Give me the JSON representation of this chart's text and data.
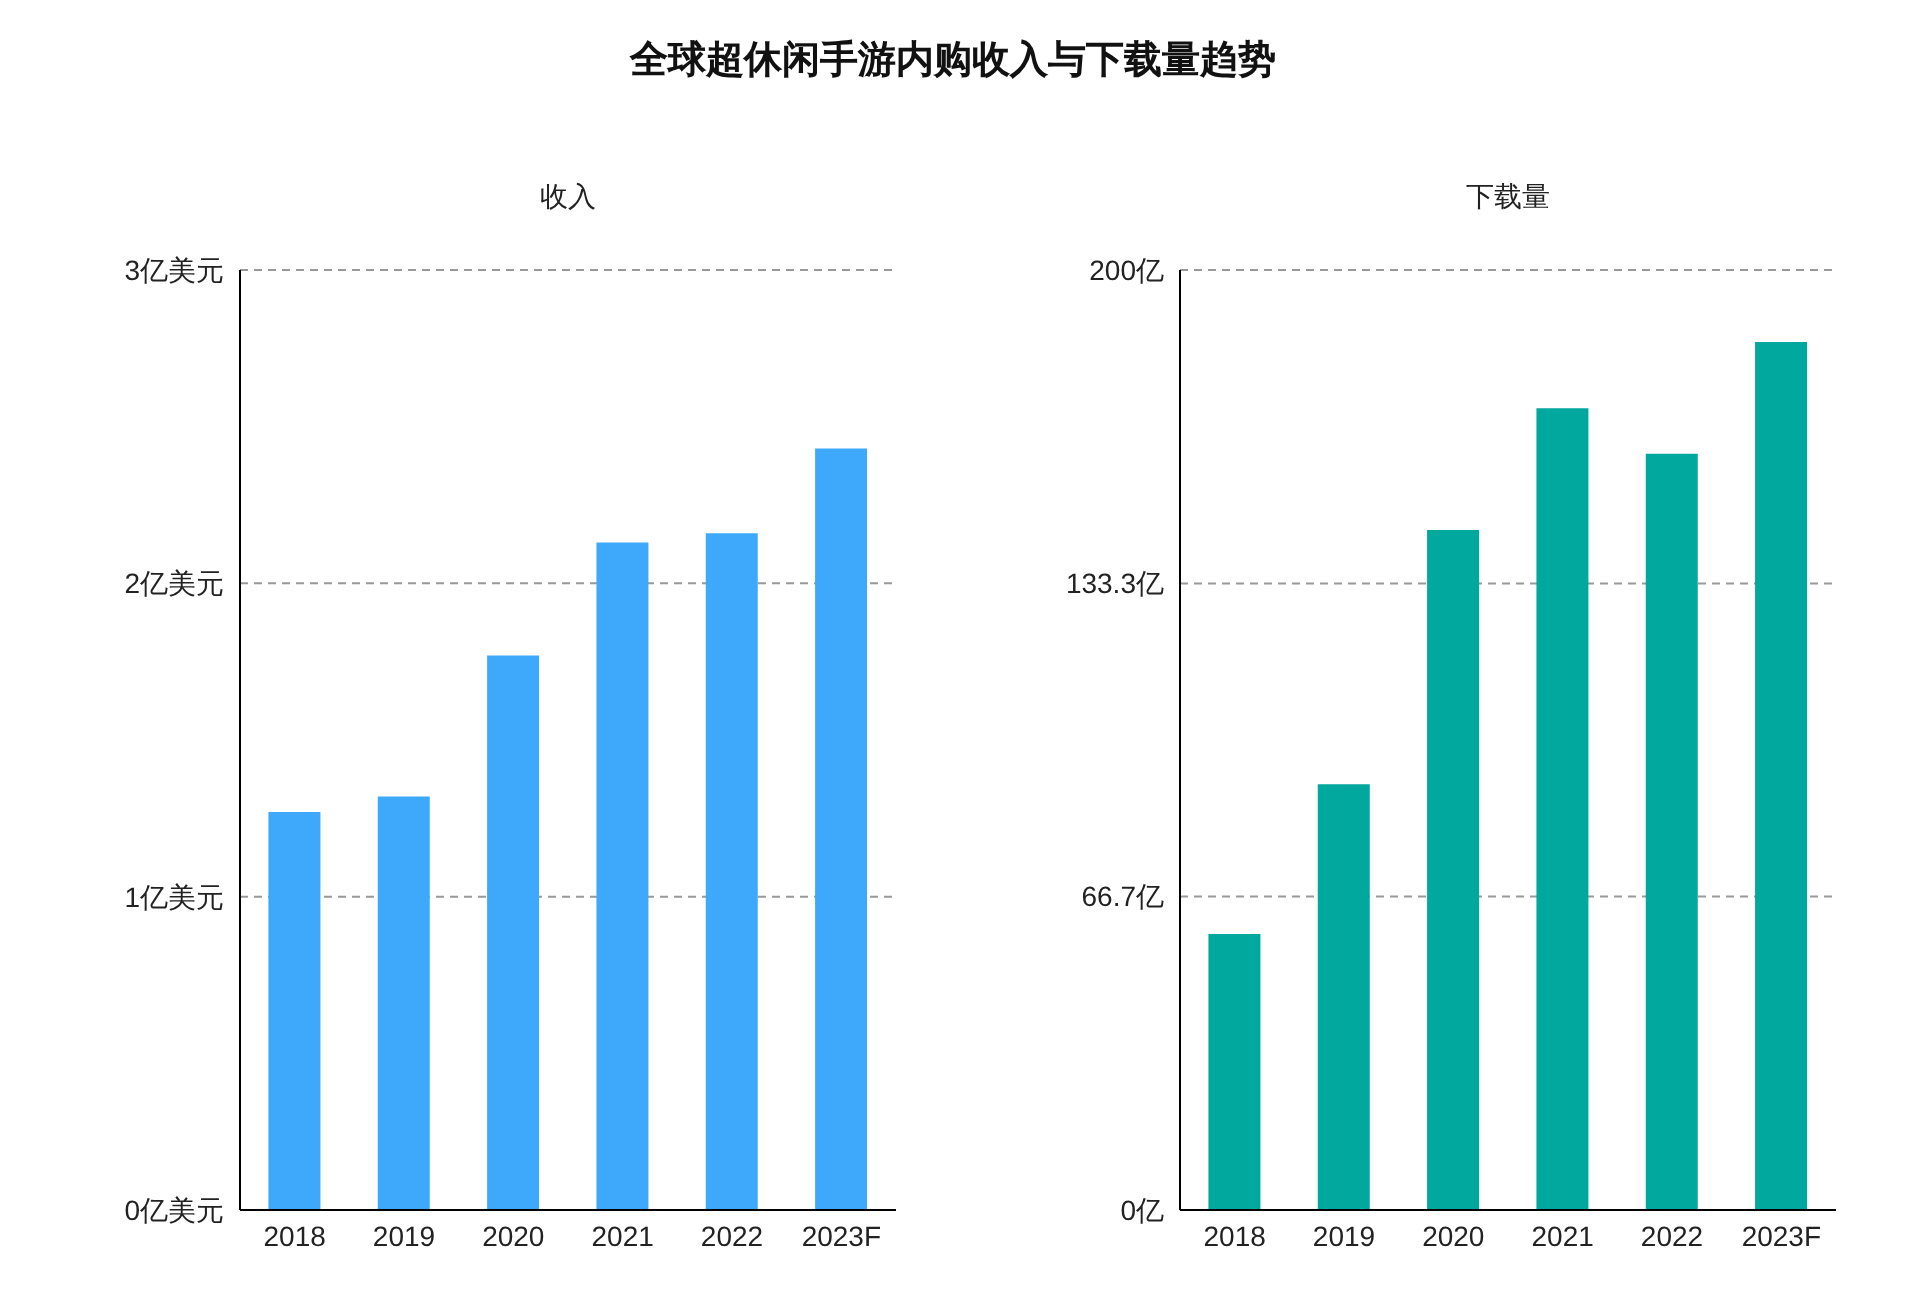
{
  "chart_data": [
    {
      "type": "bar",
      "title": "全球超休闲手游内购收入与下载量趋势",
      "subtitle": "收入",
      "categories": [
        "2018",
        "2019",
        "2020",
        "2021",
        "2022",
        "2023F"
      ],
      "values": [
        1.27,
        1.32,
        1.77,
        2.13,
        2.16,
        2.43
      ],
      "color": "#3ea9fb",
      "ylim": [
        0,
        3
      ],
      "yticks": [
        {
          "value": 0,
          "label": "0亿美元"
        },
        {
          "value": 1,
          "label": "1亿美元"
        },
        {
          "value": 2,
          "label": "2亿美元"
        },
        {
          "value": 3,
          "label": "3亿美元"
        }
      ],
      "grid": "y"
    },
    {
      "type": "bar",
      "subtitle": "下载量",
      "categories": [
        "2018",
        "2019",
        "2020",
        "2021",
        "2022",
        "2023F"
      ],
      "values": [
        58.7,
        90.6,
        144.7,
        170.6,
        160.9,
        184.7
      ],
      "color": "#00a89d",
      "ylim": [
        0,
        200
      ],
      "yticks": [
        {
          "value": 0,
          "label": "0亿"
        },
        {
          "value": 66.7,
          "label": "66.7亿"
        },
        {
          "value": 133.3,
          "label": "133.3亿"
        },
        {
          "value": 200,
          "label": "200亿"
        }
      ],
      "grid": "y"
    }
  ]
}
